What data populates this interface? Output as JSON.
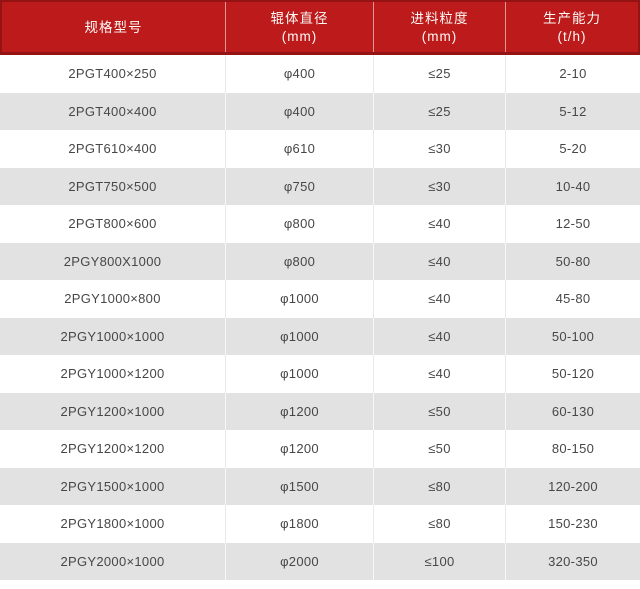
{
  "chart_data": {
    "type": "table",
    "columns": [
      {
        "label": "规格型号",
        "unit": ""
      },
      {
        "label": "辊体直径",
        "unit": "(mm)"
      },
      {
        "label": "进料粒度",
        "unit": "(mm)"
      },
      {
        "label": "生产能力",
        "unit": "(t/h)"
      }
    ],
    "rows": [
      [
        "2PGT400×250",
        "φ400",
        "≤25",
        "2-10"
      ],
      [
        "2PGT400×400",
        "φ400",
        "≤25",
        "5-12"
      ],
      [
        "2PGT610×400",
        "φ610",
        "≤30",
        "5-20"
      ],
      [
        "2PGT750×500",
        "φ750",
        "≤30",
        "10-40"
      ],
      [
        "2PGT800×600",
        "φ800",
        "≤40",
        "12-50"
      ],
      [
        "2PGY800X1000",
        "φ800",
        "≤40",
        "50-80"
      ],
      [
        "2PGY1000×800",
        "φ1000",
        "≤40",
        "45-80"
      ],
      [
        "2PGY1000×1000",
        "φ1000",
        "≤40",
        "50-100"
      ],
      [
        "2PGY1000×1200",
        "φ1000",
        "≤40",
        "50-120"
      ],
      [
        "2PGY1200×1000",
        "φ1200",
        "≤50",
        "60-130"
      ],
      [
        "2PGY1200×1200",
        "φ1200",
        "≤50",
        "80-150"
      ],
      [
        "2PGY1500×1000",
        "φ1500",
        "≤80",
        "120-200"
      ],
      [
        "2PGY1800×1000",
        "φ1800",
        "≤80",
        "150-230"
      ],
      [
        "2PGY2000×1000",
        "φ2000",
        "≤100",
        "320-350"
      ]
    ],
    "layout": {
      "header_lines": 2,
      "alternating_rows": true,
      "grid": "vertical-dividers-only"
    }
  },
  "colors": {
    "header_bg": "#bc1a1b",
    "header_border": "#941313",
    "header_text": "#fdfaf6",
    "header_divider": "rgba(255,255,255,0.55)",
    "row_bg": "#ffffff",
    "row_alt_bg": "#e2e2e2",
    "body_text": "#474747",
    "divider_light": "#e9e9e9",
    "divider_on_gray": "#f8f8f8"
  }
}
